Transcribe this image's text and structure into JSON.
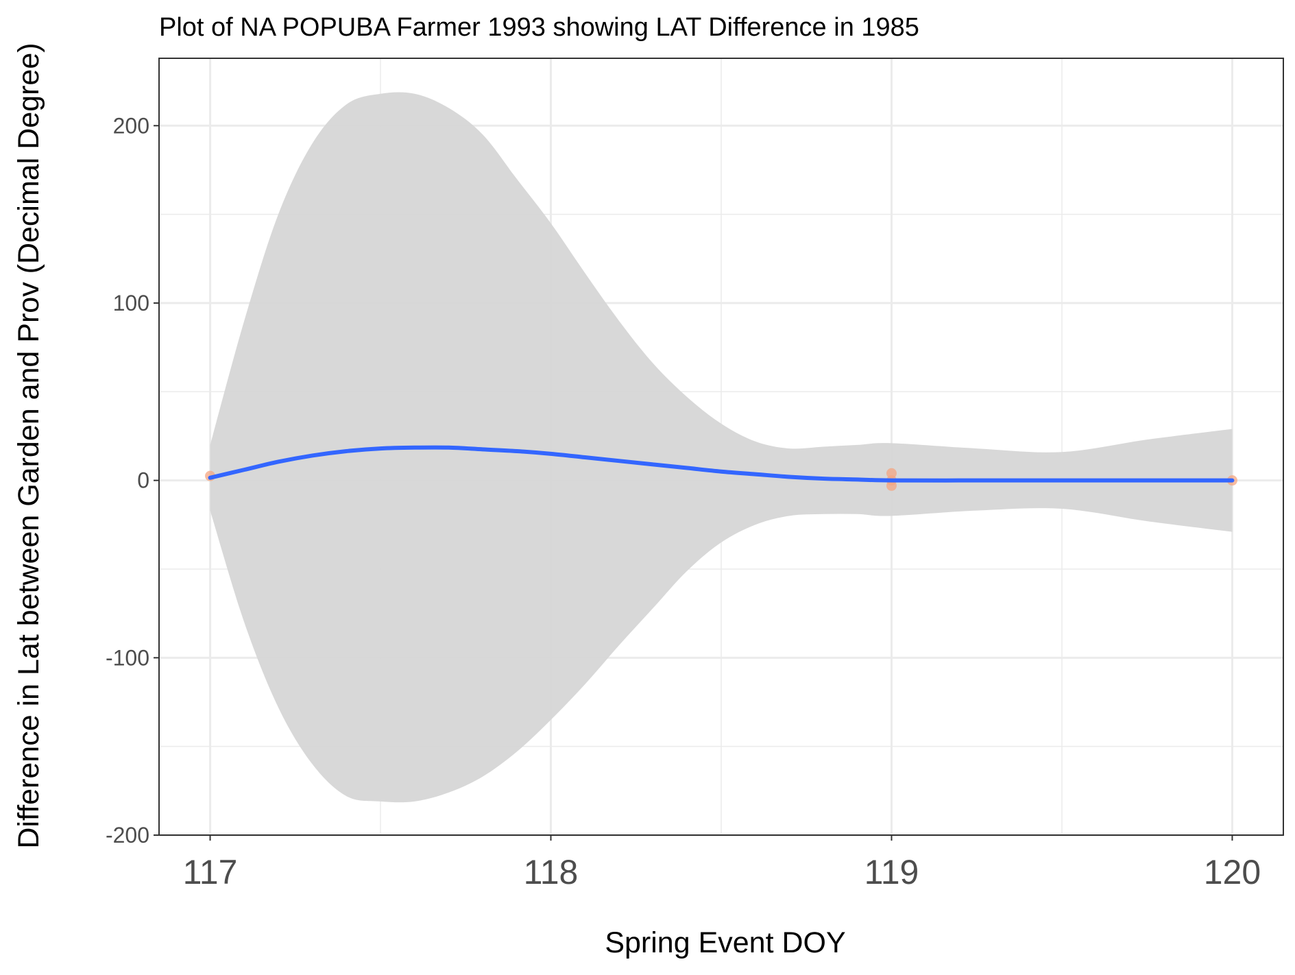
{
  "chart_data": {
    "type": "line",
    "title": "Plot of NA POPUBA Farmer 1993 showing LAT Difference in 1985",
    "xlabel": "Spring Event DOY",
    "ylabel": "Difference in Lat between Garden and Prov (Decimal Degree)",
    "xlim": [
      116.85,
      120.15
    ],
    "ylim": [
      -200,
      238
    ],
    "x_ticks": [
      117,
      118,
      119,
      120
    ],
    "y_ticks": [
      -200,
      -100,
      0,
      100,
      200
    ],
    "x_tick_labels": [
      "117",
      "118",
      "119",
      "120"
    ],
    "y_tick_labels": [
      "-200",
      "-100",
      "0",
      "100",
      "200"
    ],
    "grid": true,
    "legend": "none",
    "points": {
      "name": "observations",
      "x": [
        117,
        119,
        119,
        119,
        120
      ],
      "y": [
        2.5,
        4,
        0,
        -3,
        0
      ]
    },
    "smooth": {
      "x": [
        117.0,
        117.1,
        117.2,
        117.3,
        117.4,
        117.5,
        117.6,
        117.7,
        117.8,
        117.9,
        118.0,
        118.1,
        118.2,
        118.3,
        118.4,
        118.5,
        118.6,
        118.7,
        118.8,
        118.9,
        119.0,
        119.25,
        119.5,
        119.75,
        120.0
      ],
      "y": [
        1.5,
        6,
        10.5,
        14,
        16.5,
        18,
        18.5,
        18.5,
        17.5,
        16.5,
        15,
        13,
        11,
        9,
        7,
        5,
        3.5,
        2,
        1,
        0.5,
        0,
        0,
        0,
        0,
        0
      ],
      "upper": [
        20,
        90,
        150,
        190,
        212,
        218,
        218,
        210,
        195,
        170,
        145,
        117,
        90,
        66,
        47,
        32,
        22,
        18,
        19,
        20,
        21,
        18,
        16,
        23,
        29
      ],
      "lower": [
        -17,
        -80,
        -128,
        -160,
        -178,
        -181,
        -181,
        -176,
        -167,
        -153,
        -135,
        -115,
        -93,
        -72,
        -51,
        -35,
        -25,
        -20,
        -19,
        -19,
        -20,
        -17,
        -16,
        -23,
        -29
      ]
    },
    "colors": {
      "line": "#3366ff",
      "band": "#d6d6d6",
      "points": "#f4a582",
      "grid": "#ebebeb",
      "panel_border": "#333333"
    }
  }
}
